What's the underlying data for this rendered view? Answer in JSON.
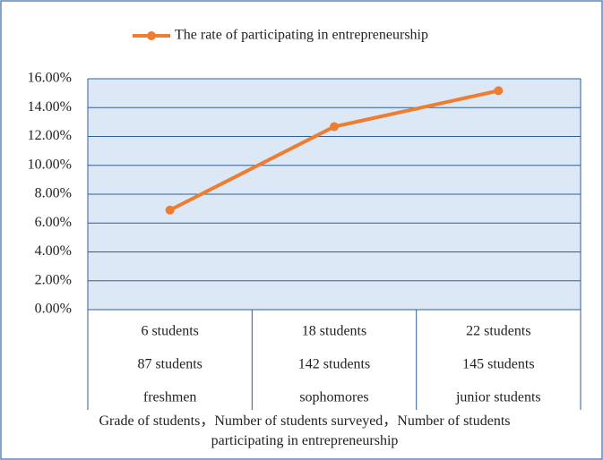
{
  "chart_data": {
    "type": "line",
    "categories": [
      [
        "6 students",
        "87 students",
        "freshmen"
      ],
      [
        "18 students",
        "142 students",
        "sophomores"
      ],
      [
        "22 students",
        "145 students",
        "junior students"
      ]
    ],
    "series": [
      {
        "name": "The rate of participating in entrepreneurship",
        "color": "#ed7d31",
        "values": [
          6.9,
          12.68,
          15.17
        ]
      }
    ],
    "x_label": "Grade of students，Number of students surveyed，Number of students participating  in entrepreneurship",
    "ylim": [
      0,
      16
    ],
    "yticks": [
      {
        "value": 0,
        "label": "0.00%"
      },
      {
        "value": 2,
        "label": "2.00%"
      },
      {
        "value": 4,
        "label": "4.00%"
      },
      {
        "value": 6,
        "label": "6.00%"
      },
      {
        "value": 8,
        "label": "8.00%"
      },
      {
        "value": 10,
        "label": "10.00%"
      },
      {
        "value": 12,
        "label": "12.00%"
      },
      {
        "value": 14,
        "label": "14.00%"
      },
      {
        "value": 16,
        "label": "16.00%"
      }
    ],
    "grid": true,
    "legend": "top"
  }
}
